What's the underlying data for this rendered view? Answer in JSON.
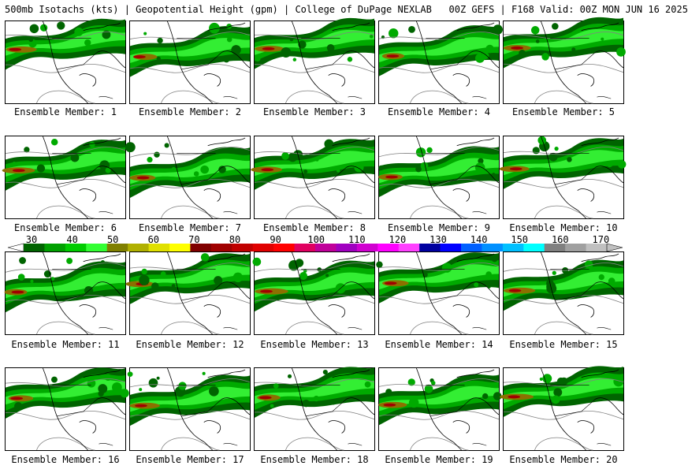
{
  "header": {
    "title": "500mb Isotachs (kts) | Geopotential Height (gpm) | College of DuPage NEXLAB   00Z GEFS | F168 Valid: 00Z MON JUN 16 2025"
  },
  "members": [
    "Ensemble Member: 1",
    "Ensemble Member: 2",
    "Ensemble Member: 3",
    "Ensemble Member: 4",
    "Ensemble Member: 5",
    "Ensemble Member: 6",
    "Ensemble Member: 7",
    "Ensemble Member: 8",
    "Ensemble Member: 9",
    "Ensemble Member: 10",
    "Ensemble Member: 11",
    "Ensemble Member: 12",
    "Ensemble Member: 13",
    "Ensemble Member: 14",
    "Ensemble Member: 15",
    "Ensemble Member: 16",
    "Ensemble Member: 17",
    "Ensemble Member: 18",
    "Ensemble Member: 19",
    "Ensemble Member: 20"
  ],
  "colorbar": {
    "labels": [
      "30",
      "40",
      "50",
      "60",
      "70",
      "80",
      "90",
      "100",
      "110",
      "120",
      "130",
      "140",
      "150",
      "160",
      "170"
    ],
    "colors": [
      "#006400",
      "#00a000",
      "#00cc00",
      "#33ff33",
      "#808000",
      "#b0b000",
      "#e0e000",
      "#ffff00",
      "#800000",
      "#a00000",
      "#c00000",
      "#e00000",
      "#ff0000",
      "#e00060",
      "#c0009a",
      "#a000c0",
      "#d000d0",
      "#ff00ff",
      "#ff40ff",
      "#0000a0",
      "#0000ff",
      "#0060ff",
      "#0090ff",
      "#00c0ff",
      "#00ffff",
      "#808080",
      "#a0a0a0",
      "#c0c0c0"
    ]
  },
  "colors": {
    "jet_dark": "#006400",
    "jet_mid": "#00aa00",
    "jet_light": "#33ee33",
    "jet_core": "#8b7000",
    "jet_max": "#a00000",
    "height_contour": "#808080",
    "coastline": "#000000"
  }
}
